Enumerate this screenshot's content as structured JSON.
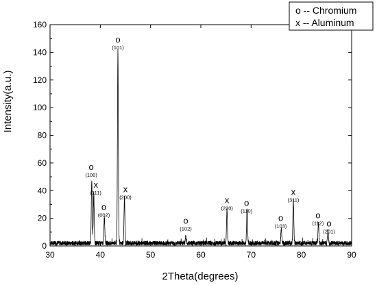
{
  "chart_data": {
    "type": "line",
    "title": "",
    "xlabel": "2Theta(degrees)",
    "ylabel": "Intensity(a.u.)",
    "xlim": [
      30,
      90
    ],
    "ylim": [
      0,
      160
    ],
    "xticks": [
      30,
      40,
      50,
      60,
      70,
      80,
      90
    ],
    "yticks": [
      0,
      20,
      40,
      60,
      80,
      100,
      120,
      140,
      160
    ],
    "grid": false,
    "legend": {
      "placement": "top-right",
      "entries": [
        {
          "marker": "o",
          "label": "o -- Chromium"
        },
        {
          "marker": "x",
          "label": "x -- Aluminum"
        }
      ]
    },
    "series": [
      {
        "color": "#000000",
        "baseline": 2,
        "peaks": [
          {
            "x": 38.3,
            "y": 48
          },
          {
            "x": 38.7,
            "y": 38
          },
          {
            "x": 40.8,
            "y": 21
          },
          {
            "x": 43.5,
            "y": 142
          },
          {
            "x": 44.8,
            "y": 35
          },
          {
            "x": 57.0,
            "y": 7
          },
          {
            "x": 65.2,
            "y": 27
          },
          {
            "x": 69.2,
            "y": 27
          },
          {
            "x": 76.0,
            "y": 13
          },
          {
            "x": 78.4,
            "y": 33
          },
          {
            "x": 83.4,
            "y": 16
          },
          {
            "x": 85.3,
            "y": 12
          }
        ]
      }
    ],
    "annotations": [
      {
        "symbol": "o",
        "hkl": "(100)",
        "x": 38.2,
        "y": 55
      },
      {
        "symbol": "x",
        "hkl": "(111)",
        "x": 39.1,
        "y": 42
      },
      {
        "symbol": "o",
        "hkl": "(002)",
        "x": 40.7,
        "y": 26
      },
      {
        "symbol": "o",
        "hkl": "(101)",
        "x": 43.5,
        "y": 147
      },
      {
        "symbol": "x",
        "hkl": "(200)",
        "x": 45.0,
        "y": 39
      },
      {
        "symbol": "o",
        "hkl": "(102)",
        "x": 57.0,
        "y": 16
      },
      {
        "symbol": "x",
        "hkl": "(220)",
        "x": 65.2,
        "y": 31
      },
      {
        "symbol": "o",
        "hkl": "(110)",
        "x": 69.1,
        "y": 29
      },
      {
        "symbol": "o",
        "hkl": "(103)",
        "x": 75.9,
        "y": 18
      },
      {
        "symbol": "x",
        "hkl": "(311)",
        "x": 78.4,
        "y": 37
      },
      {
        "symbol": "o",
        "hkl": "(112)",
        "x": 83.3,
        "y": 20
      },
      {
        "symbol": "o",
        "hkl": "(201)",
        "x": 85.5,
        "y": 14
      }
    ]
  }
}
